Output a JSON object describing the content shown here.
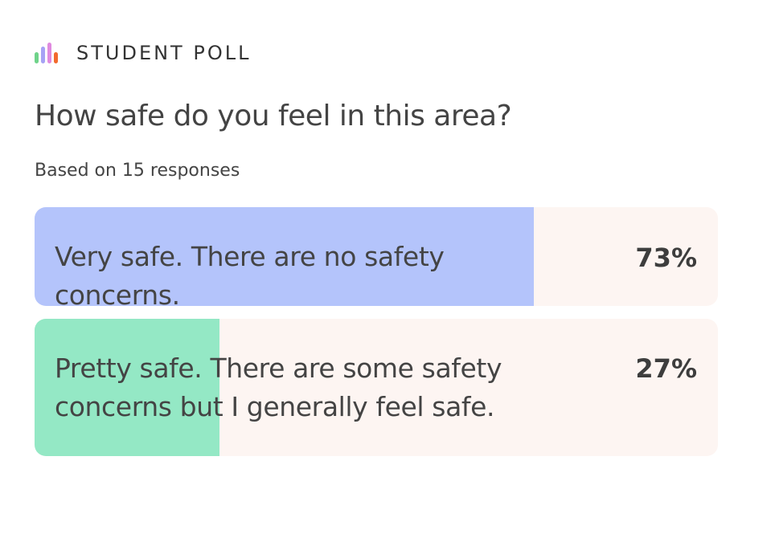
{
  "header": {
    "brand": "STUDENT POLL",
    "logo_colors": [
      "#6fd38a",
      "#a7a2f5",
      "#e08adf",
      "#f26a2e"
    ],
    "logo_levels": [
      0.55,
      0.8,
      1.0,
      0.55
    ]
  },
  "poll": {
    "question": "How safe do you feel in this area?",
    "responses_text": "Based on 15 responses"
  },
  "chart_data": {
    "type": "bar",
    "orientation": "horizontal",
    "categories": [
      "Very safe. There are no safety concerns.",
      "Pretty safe. There are some safety concerns but I generally feel safe."
    ],
    "values": [
      73,
      27
    ],
    "labels": [
      "73%",
      "27%"
    ],
    "colors": [
      "#b4c4fb",
      "#94e8c5"
    ],
    "track_color": "#fdf5f2",
    "ylim": [
      0,
      100
    ]
  }
}
